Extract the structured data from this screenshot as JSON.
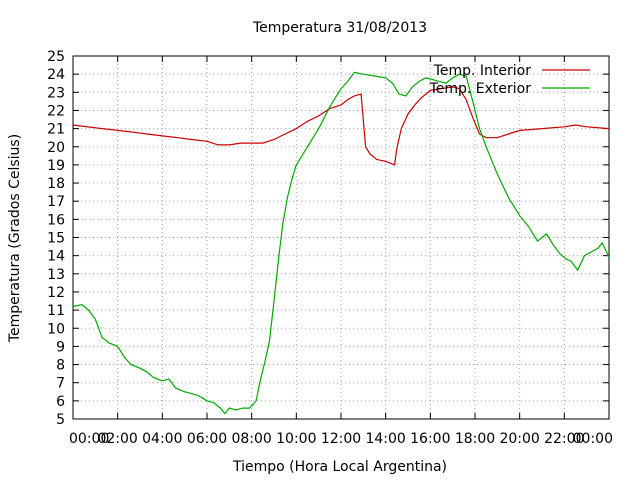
{
  "chart_data": {
    "type": "line",
    "title": "Temperatura 31/08/2013",
    "xlabel": "Tiempo (Hora Local Argentina)",
    "ylabel": "Temperatura (Grados Celsius)",
    "xlim": [
      0,
      24
    ],
    "ylim": [
      5,
      25
    ],
    "x_ticks": [
      "00:00",
      "02:00",
      "04:00",
      "06:00",
      "08:00",
      "10:00",
      "12:00",
      "14:00",
      "16:00",
      "18:00",
      "20:00",
      "22:00",
      "00:00"
    ],
    "y_ticks": [
      "5",
      "6",
      "7",
      "8",
      "9",
      "10",
      "11",
      "12",
      "13",
      "14",
      "15",
      "16",
      "17",
      "18",
      "19",
      "20",
      "21",
      "22",
      "23",
      "24",
      "25"
    ],
    "grid": true,
    "legend_position": "top-right",
    "series": [
      {
        "name": "Temp. Interior",
        "color": "#cc0000",
        "x": [
          0,
          1.3,
          2,
          2.7,
          3.3,
          4,
          4.7,
          5.3,
          6,
          6.5,
          7,
          7.5,
          8,
          8.5,
          9,
          9.5,
          10,
          10.5,
          11,
          11.5,
          12,
          12.3,
          12.6,
          12.9,
          13.1,
          13.3,
          13.6,
          14,
          14.4,
          14.5,
          14.7,
          15,
          15.3,
          15.6,
          16,
          16.5,
          17,
          17.3,
          17.6,
          17.9,
          18.2,
          18.5,
          19,
          19.5,
          20,
          21,
          22,
          22.5,
          23,
          24
        ],
        "y": [
          21.2,
          21.0,
          20.9,
          20.8,
          20.7,
          20.6,
          20.5,
          20.4,
          20.3,
          20.1,
          20.1,
          20.2,
          20.2,
          20.2,
          20.4,
          20.7,
          21.0,
          21.4,
          21.7,
          22.1,
          22.3,
          22.6,
          22.8,
          22.9,
          20.0,
          19.6,
          19.3,
          19.2,
          19.0,
          19.9,
          21.0,
          21.8,
          22.3,
          22.7,
          23.1,
          23.2,
          23.3,
          23.2,
          22.6,
          21.6,
          20.7,
          20.5,
          20.5,
          20.7,
          20.9,
          21.0,
          21.1,
          21.2,
          21.1,
          21.0
        ]
      },
      {
        "name": "Temp. Exterior",
        "color": "#00aa00",
        "x": [
          0,
          0.4,
          0.7,
          1,
          1.3,
          1.6,
          2,
          2.3,
          2.6,
          3,
          3.3,
          3.6,
          4,
          4.3,
          4.6,
          5,
          5.3,
          5.6,
          6,
          6.3,
          6.6,
          6.8,
          7,
          7.3,
          7.6,
          7.9,
          8.2,
          8.4,
          8.6,
          8.8,
          9,
          9.2,
          9.4,
          9.6,
          9.8,
          10,
          10.5,
          11,
          11.5,
          12,
          12.3,
          12.6,
          13,
          13.5,
          14,
          14.3,
          14.6,
          14.9,
          15.2,
          15.5,
          15.8,
          16.1,
          16.4,
          16.7,
          17,
          17.3,
          17.6,
          17.9,
          18.2,
          18.5,
          19,
          19.5,
          20,
          20.4,
          20.8,
          21.2,
          21.5,
          21.8,
          22.1,
          22.3,
          22.6,
          22.9,
          23.2,
          23.5,
          23.7,
          24
        ],
        "y": [
          11.2,
          11.3,
          11.0,
          10.5,
          9.5,
          9.2,
          9.0,
          8.4,
          8.0,
          7.8,
          7.6,
          7.3,
          7.1,
          7.2,
          6.7,
          6.5,
          6.4,
          6.3,
          6.0,
          5.9,
          5.6,
          5.3,
          5.6,
          5.5,
          5.6,
          5.6,
          6.0,
          7.2,
          8.2,
          9.3,
          11.5,
          13.8,
          15.8,
          17.2,
          18.2,
          19.0,
          20.0,
          21.0,
          22.2,
          23.2,
          23.6,
          24.1,
          24.0,
          23.9,
          23.8,
          23.5,
          22.9,
          22.8,
          23.3,
          23.6,
          23.8,
          23.7,
          23.6,
          23.5,
          23.8,
          24.0,
          23.9,
          22.5,
          21.0,
          20.0,
          18.5,
          17.2,
          16.2,
          15.6,
          14.8,
          15.2,
          14.6,
          14.1,
          13.8,
          13.7,
          13.2,
          14.0,
          14.2,
          14.4,
          14.7,
          13.9
        ]
      }
    ]
  }
}
